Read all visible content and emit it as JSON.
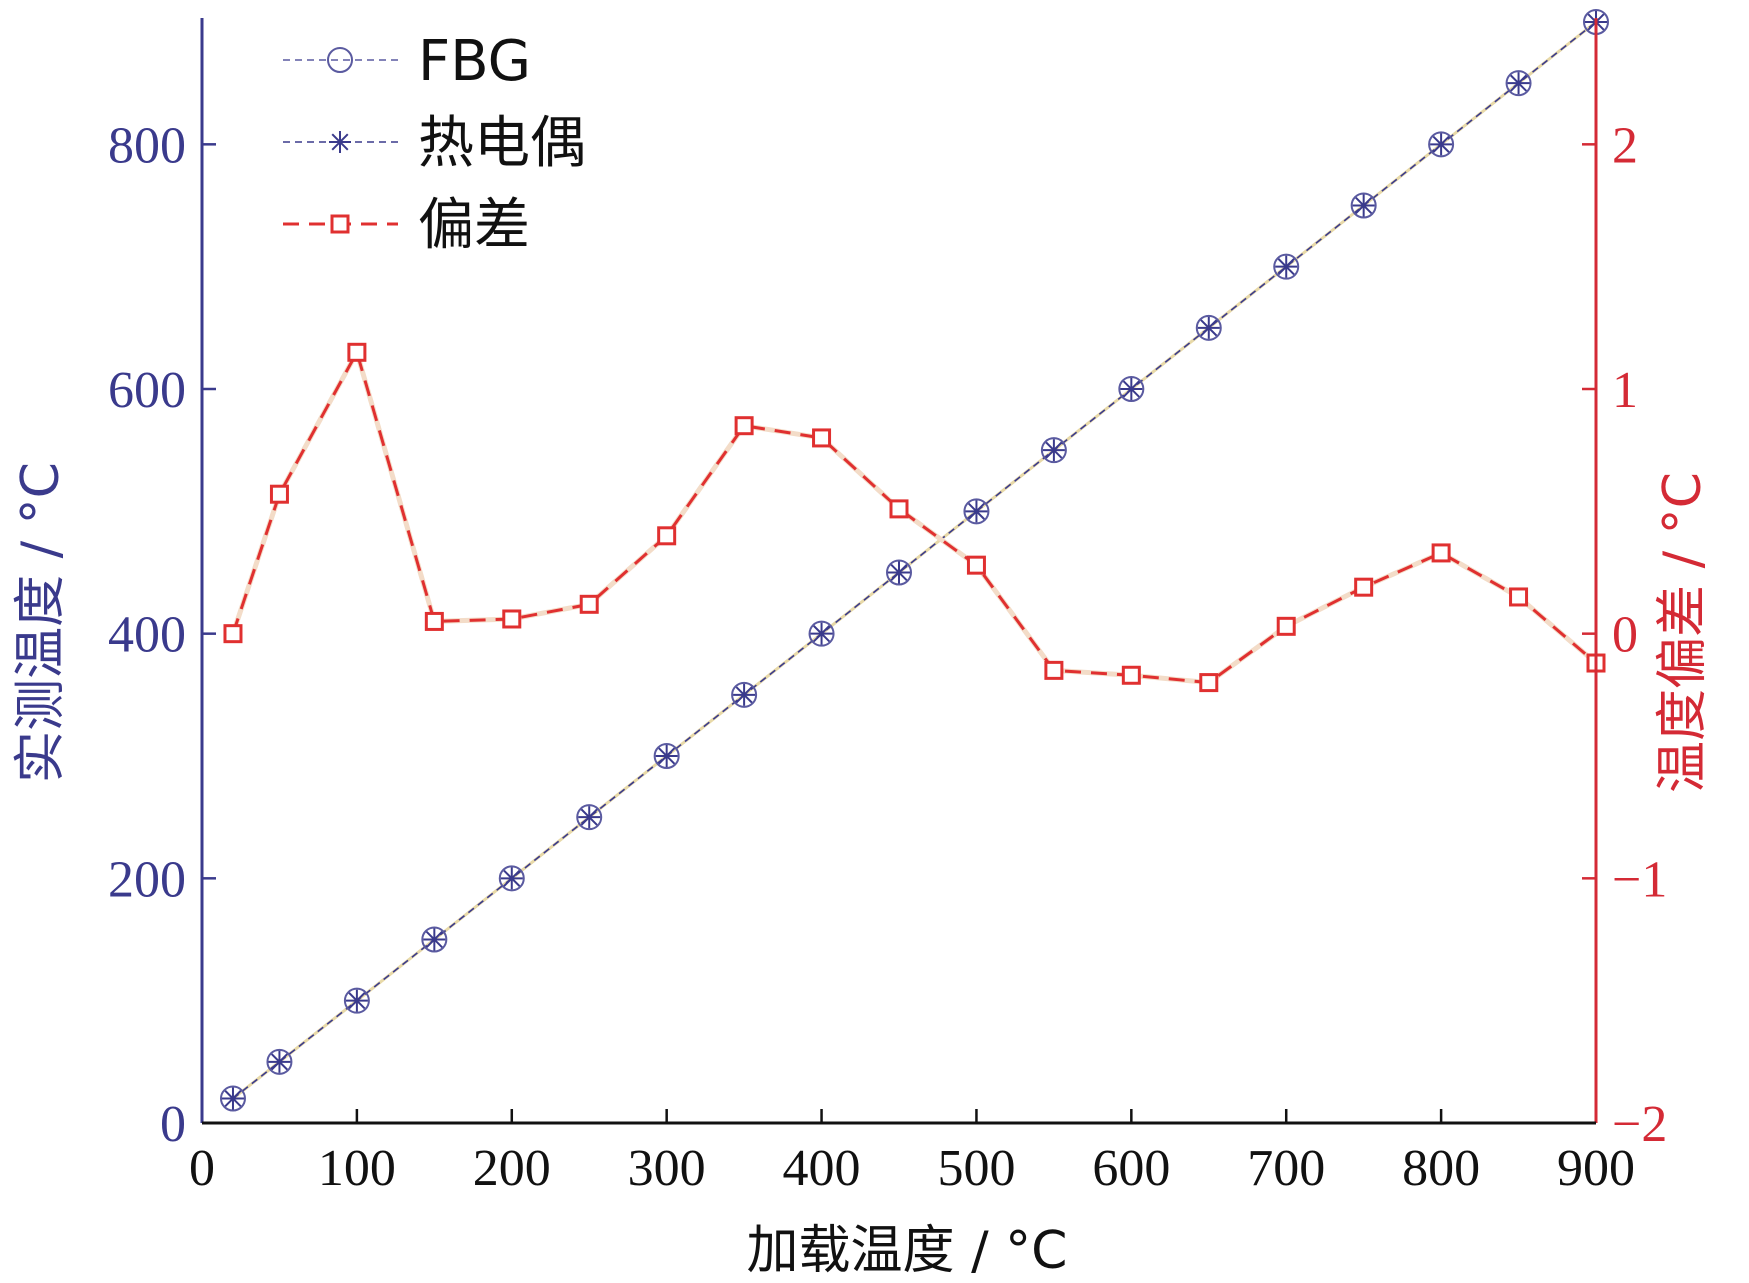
{
  "chart_data": {
    "type": "line",
    "xlabel": "加载温度 / °C",
    "ylabel_left": "实测温度 / °C",
    "ylabel_right": "温度偏差 / °C",
    "xlim": [
      0,
      900
    ],
    "ylim_left": [
      0,
      900
    ],
    "ylim_right": [
      -2,
      2.5
    ],
    "x_ticks": [
      "0",
      "100",
      "200",
      "300",
      "400",
      "500",
      "600",
      "700",
      "800",
      "900"
    ],
    "y_left_ticks": [
      "0",
      "200",
      "400",
      "600",
      "800"
    ],
    "y_right_ticks": [
      "−2",
      "−1",
      "0",
      "1",
      "2"
    ],
    "x": [
      20,
      50,
      100,
      150,
      200,
      250,
      300,
      350,
      400,
      450,
      500,
      550,
      600,
      650,
      700,
      750,
      800,
      850,
      900
    ],
    "series": [
      {
        "name": "FBG",
        "axis": "left",
        "marker": "circle",
        "values": [
          20,
          50,
          100,
          150,
          200,
          250,
          300,
          350,
          400,
          450,
          500,
          550,
          600,
          650,
          700,
          750,
          800,
          850,
          900
        ]
      },
      {
        "name": "热电偶",
        "axis": "left",
        "marker": "asterisk",
        "values": [
          20,
          50,
          100,
          150,
          200,
          250,
          300,
          350,
          400,
          450,
          500,
          550,
          600,
          650,
          700,
          750,
          800,
          850,
          900
        ]
      },
      {
        "name": "偏差",
        "axis": "right",
        "marker": "square",
        "values": [
          0.0,
          0.57,
          1.15,
          0.05,
          0.06,
          0.12,
          0.4,
          0.85,
          0.8,
          0.51,
          0.28,
          -0.15,
          -0.17,
          -0.2,
          0.03,
          0.19,
          0.33,
          0.15,
          -0.12
        ]
      }
    ],
    "legend_position": "top-left",
    "grid": false,
    "colors": {
      "left_axis": "#3a3a8c",
      "right_axis": "#d42a35",
      "fbg": "#5a5aa0",
      "thermocouple": "#3a3a8c",
      "deviation": "#e03030",
      "x_axis": "#111111"
    }
  }
}
